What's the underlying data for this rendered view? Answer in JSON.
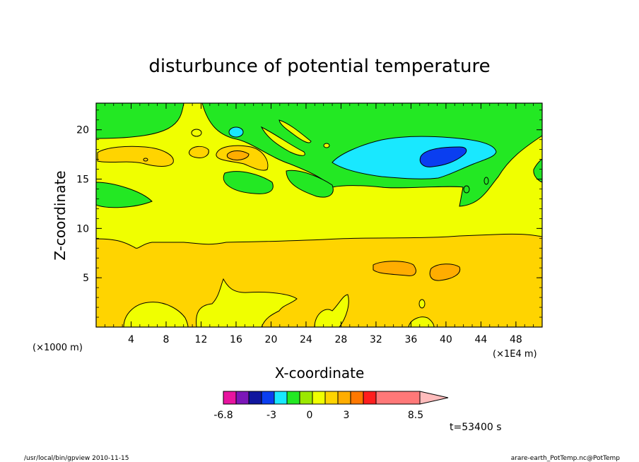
{
  "chart_data": {
    "type": "contour",
    "title": "disturbunce of potential temperature",
    "xlabel": "X-coordinate",
    "ylabel": "Z-coordinate",
    "x_unit_label": "(×1E4 m)",
    "y_unit_label": "(×1000 m)",
    "xlim": [
      0,
      51
    ],
    "ylim": [
      0,
      22.7
    ],
    "x_ticks": [
      "4",
      "8",
      "12",
      "16",
      "20",
      "24",
      "28",
      "32",
      "36",
      "40",
      "44",
      "48"
    ],
    "y_ticks": [
      "5",
      "10",
      "15",
      "20"
    ],
    "time_label": "t=53400 s",
    "colorbar": {
      "colors": [
        "#e8149f",
        "#7b16b8",
        "#10169e",
        "#0a3ef0",
        "#19e8ff",
        "#23e823",
        "#9be800",
        "#f0ff00",
        "#ffd400",
        "#ffad00",
        "#ff7800",
        "#ff1e1e",
        "#ff7878",
        "#ffbcbc"
      ],
      "labels": [
        "-6.8",
        "-3",
        "0",
        "3",
        "8.5"
      ]
    },
    "field_colors": {
      "background_level": "#f0ff00",
      "negative_level": "#23e823",
      "more_negative_level": "#19e8ff",
      "most_negative_level": "#0a3ef0",
      "positive_level": "#ffd400",
      "more_positive_level": "#ffad00"
    }
  },
  "footer": {
    "left": "/usr/local/bin/gpview  2010-11-15",
    "right": "arare-earth_PotTemp.nc@PotTemp"
  }
}
